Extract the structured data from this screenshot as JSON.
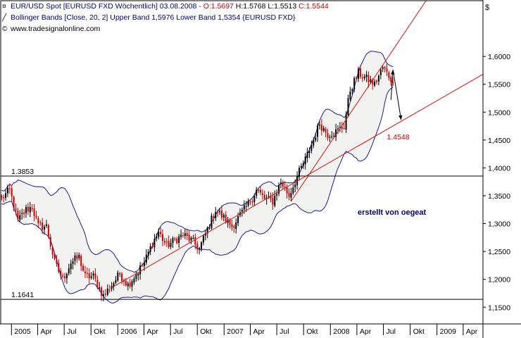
{
  "legend": {
    "line1_symbol": "¤",
    "line1_instrument": "EUR/USD Spot [EURUSD FXD  Wöchentlich] 03.08.2008 - ",
    "line1_open": "O:1.5697",
    "line1_high": " H:1.5768",
    "line1_low": " L:1.5513",
    "line1_close": " C:1.5544",
    "line2_symbol": "╱",
    "line2_text": "Bollinger Bands [Close, 20, 2] Upper Band 1,5976 Lower Band 1,5354 {EURUSD FXD}",
    "line3_symbol": "©",
    "line3_text": "www.tradesignalonline.com"
  },
  "colors": {
    "background": "#ffffff",
    "band_fill": "#f2f2f0",
    "band_line": "#1c1c8c",
    "candle_up": "#000000",
    "candle_down": "#cc0000",
    "trendline": "#dd1111",
    "horizontal_line": "#000000",
    "annotation_text": "#000080",
    "price_label": "#cc0000"
  },
  "chart_data": {
    "type": "candlestick",
    "title": "EUR/USD Spot [EURUSD FXD  Wöchentlich]",
    "currency_symbol": "$",
    "frequency": "weekly",
    "ylim": [
      1.12,
      1.7
    ],
    "y_ticks": [
      "1,1500",
      "1,2000",
      "1,2500",
      "1,3000",
      "1,3500",
      "1,4000",
      "1,4500",
      "1,5000",
      "1,5500",
      "1,6000"
    ],
    "y_tick_values": [
      1.15,
      1.2,
      1.25,
      1.3,
      1.35,
      1.4,
      1.45,
      1.5,
      1.55,
      1.6
    ],
    "xlim": [
      "2004-11-25",
      "2009-06-08"
    ],
    "x_ticks": [
      {
        "label": "2005",
        "date": "2005-01-01"
      },
      {
        "label": "Apr",
        "date": "2005-04-01"
      },
      {
        "label": "Jul",
        "date": "2005-07-01"
      },
      {
        "label": "Okt",
        "date": "2005-10-01"
      },
      {
        "label": "2006",
        "date": "2006-01-01"
      },
      {
        "label": "Apr",
        "date": "2006-04-01"
      },
      {
        "label": "Jul",
        "date": "2006-07-01"
      },
      {
        "label": "Okt",
        "date": "2006-10-01"
      },
      {
        "label": "2007",
        "date": "2007-01-01"
      },
      {
        "label": "Apr",
        "date": "2007-04-01"
      },
      {
        "label": "Jul",
        "date": "2007-07-01"
      },
      {
        "label": "Okt",
        "date": "2007-10-01"
      },
      {
        "label": "2008",
        "date": "2008-01-01"
      },
      {
        "label": "Apr",
        "date": "2008-04-01"
      },
      {
        "label": "Jul",
        "date": "2008-07-01"
      },
      {
        "label": "Okt",
        "date": "2008-10-01"
      },
      {
        "label": "2009",
        "date": "2009-01-01"
      },
      {
        "label": "Apr",
        "date": "2009-04-01"
      }
    ],
    "close_path": [
      {
        "date": "2004-11-28",
        "close": 1.345
      },
      {
        "date": "2004-12-26",
        "close": 1.36
      },
      {
        "date": "2005-01-23",
        "close": 1.305
      },
      {
        "date": "2005-02-20",
        "close": 1.325
      },
      {
        "date": "2005-03-13",
        "close": 1.33
      },
      {
        "date": "2005-04-03",
        "close": 1.295
      },
      {
        "date": "2005-05-01",
        "close": 1.295
      },
      {
        "date": "2005-05-29",
        "close": 1.23
      },
      {
        "date": "2005-06-26",
        "close": 1.2
      },
      {
        "date": "2005-07-24",
        "close": 1.23
      },
      {
        "date": "2005-08-21",
        "close": 1.24
      },
      {
        "date": "2005-09-11",
        "close": 1.205
      },
      {
        "date": "2005-10-09",
        "close": 1.205
      },
      {
        "date": "2005-11-13",
        "close": 1.17
      },
      {
        "date": "2005-12-11",
        "close": 1.19
      },
      {
        "date": "2006-01-08",
        "close": 1.21
      },
      {
        "date": "2006-02-05",
        "close": 1.19
      },
      {
        "date": "2006-03-05",
        "close": 1.21
      },
      {
        "date": "2006-04-02",
        "close": 1.23
      },
      {
        "date": "2006-04-30",
        "close": 1.265
      },
      {
        "date": "2006-05-21",
        "close": 1.285
      },
      {
        "date": "2006-06-18",
        "close": 1.26
      },
      {
        "date": "2006-07-16",
        "close": 1.27
      },
      {
        "date": "2006-08-13",
        "close": 1.28
      },
      {
        "date": "2006-09-10",
        "close": 1.27
      },
      {
        "date": "2006-10-08",
        "close": 1.255
      },
      {
        "date": "2006-11-05",
        "close": 1.29
      },
      {
        "date": "2006-12-03",
        "close": 1.325
      },
      {
        "date": "2006-12-31",
        "close": 1.31
      },
      {
        "date": "2007-01-28",
        "close": 1.295
      },
      {
        "date": "2007-02-25",
        "close": 1.315
      },
      {
        "date": "2007-03-25",
        "close": 1.335
      },
      {
        "date": "2007-04-22",
        "close": 1.36
      },
      {
        "date": "2007-05-20",
        "close": 1.345
      },
      {
        "date": "2007-06-17",
        "close": 1.34
      },
      {
        "date": "2007-07-15",
        "close": 1.375
      },
      {
        "date": "2007-08-12",
        "close": 1.35
      },
      {
        "date": "2007-09-09",
        "close": 1.385
      },
      {
        "date": "2007-10-07",
        "close": 1.415
      },
      {
        "date": "2007-11-04",
        "close": 1.45
      },
      {
        "date": "2007-11-25",
        "close": 1.48
      },
      {
        "date": "2007-12-23",
        "close": 1.46
      },
      {
        "date": "2008-01-20",
        "close": 1.465
      },
      {
        "date": "2008-02-17",
        "close": 1.475
      },
      {
        "date": "2008-03-09",
        "close": 1.54
      },
      {
        "date": "2008-04-06",
        "close": 1.57
      },
      {
        "date": "2008-05-04",
        "close": 1.56
      },
      {
        "date": "2008-06-01",
        "close": 1.55
      },
      {
        "date": "2008-06-29",
        "close": 1.58
      },
      {
        "date": "2008-07-20",
        "close": 1.565
      },
      {
        "date": "2008-08-03",
        "close": 1.5544
      }
    ],
    "horizontal_lines": [
      {
        "label": "1.3853",
        "value": 1.3853
      },
      {
        "label": "1.1641",
        "value": 1.1641
      }
    ],
    "trendlines": [
      {
        "name": "steep",
        "from": {
          "date": "2007-08-19",
          "value": 1.34
        },
        "to": {
          "date": "2008-12-01",
          "value": 1.705
        }
      },
      {
        "name": "shallow",
        "from": {
          "date": "2005-12-11",
          "value": 1.185
        },
        "to": {
          "date": "2009-06-08",
          "value": 1.568
        }
      }
    ],
    "price_annotation": {
      "label": "1.4548",
      "date": "2008-07-13",
      "value": 1.4548
    },
    "arrows": [
      {
        "from": {
          "date": "2008-07-27",
          "value": 1.522
        },
        "to": {
          "date": "2008-08-03",
          "value": 1.576
        }
      },
      {
        "from": {
          "date": "2008-08-03",
          "value": 1.576
        },
        "to": {
          "date": "2008-08-31",
          "value": 1.486
        }
      }
    ],
    "annotation": "erstellt von oegeat"
  }
}
